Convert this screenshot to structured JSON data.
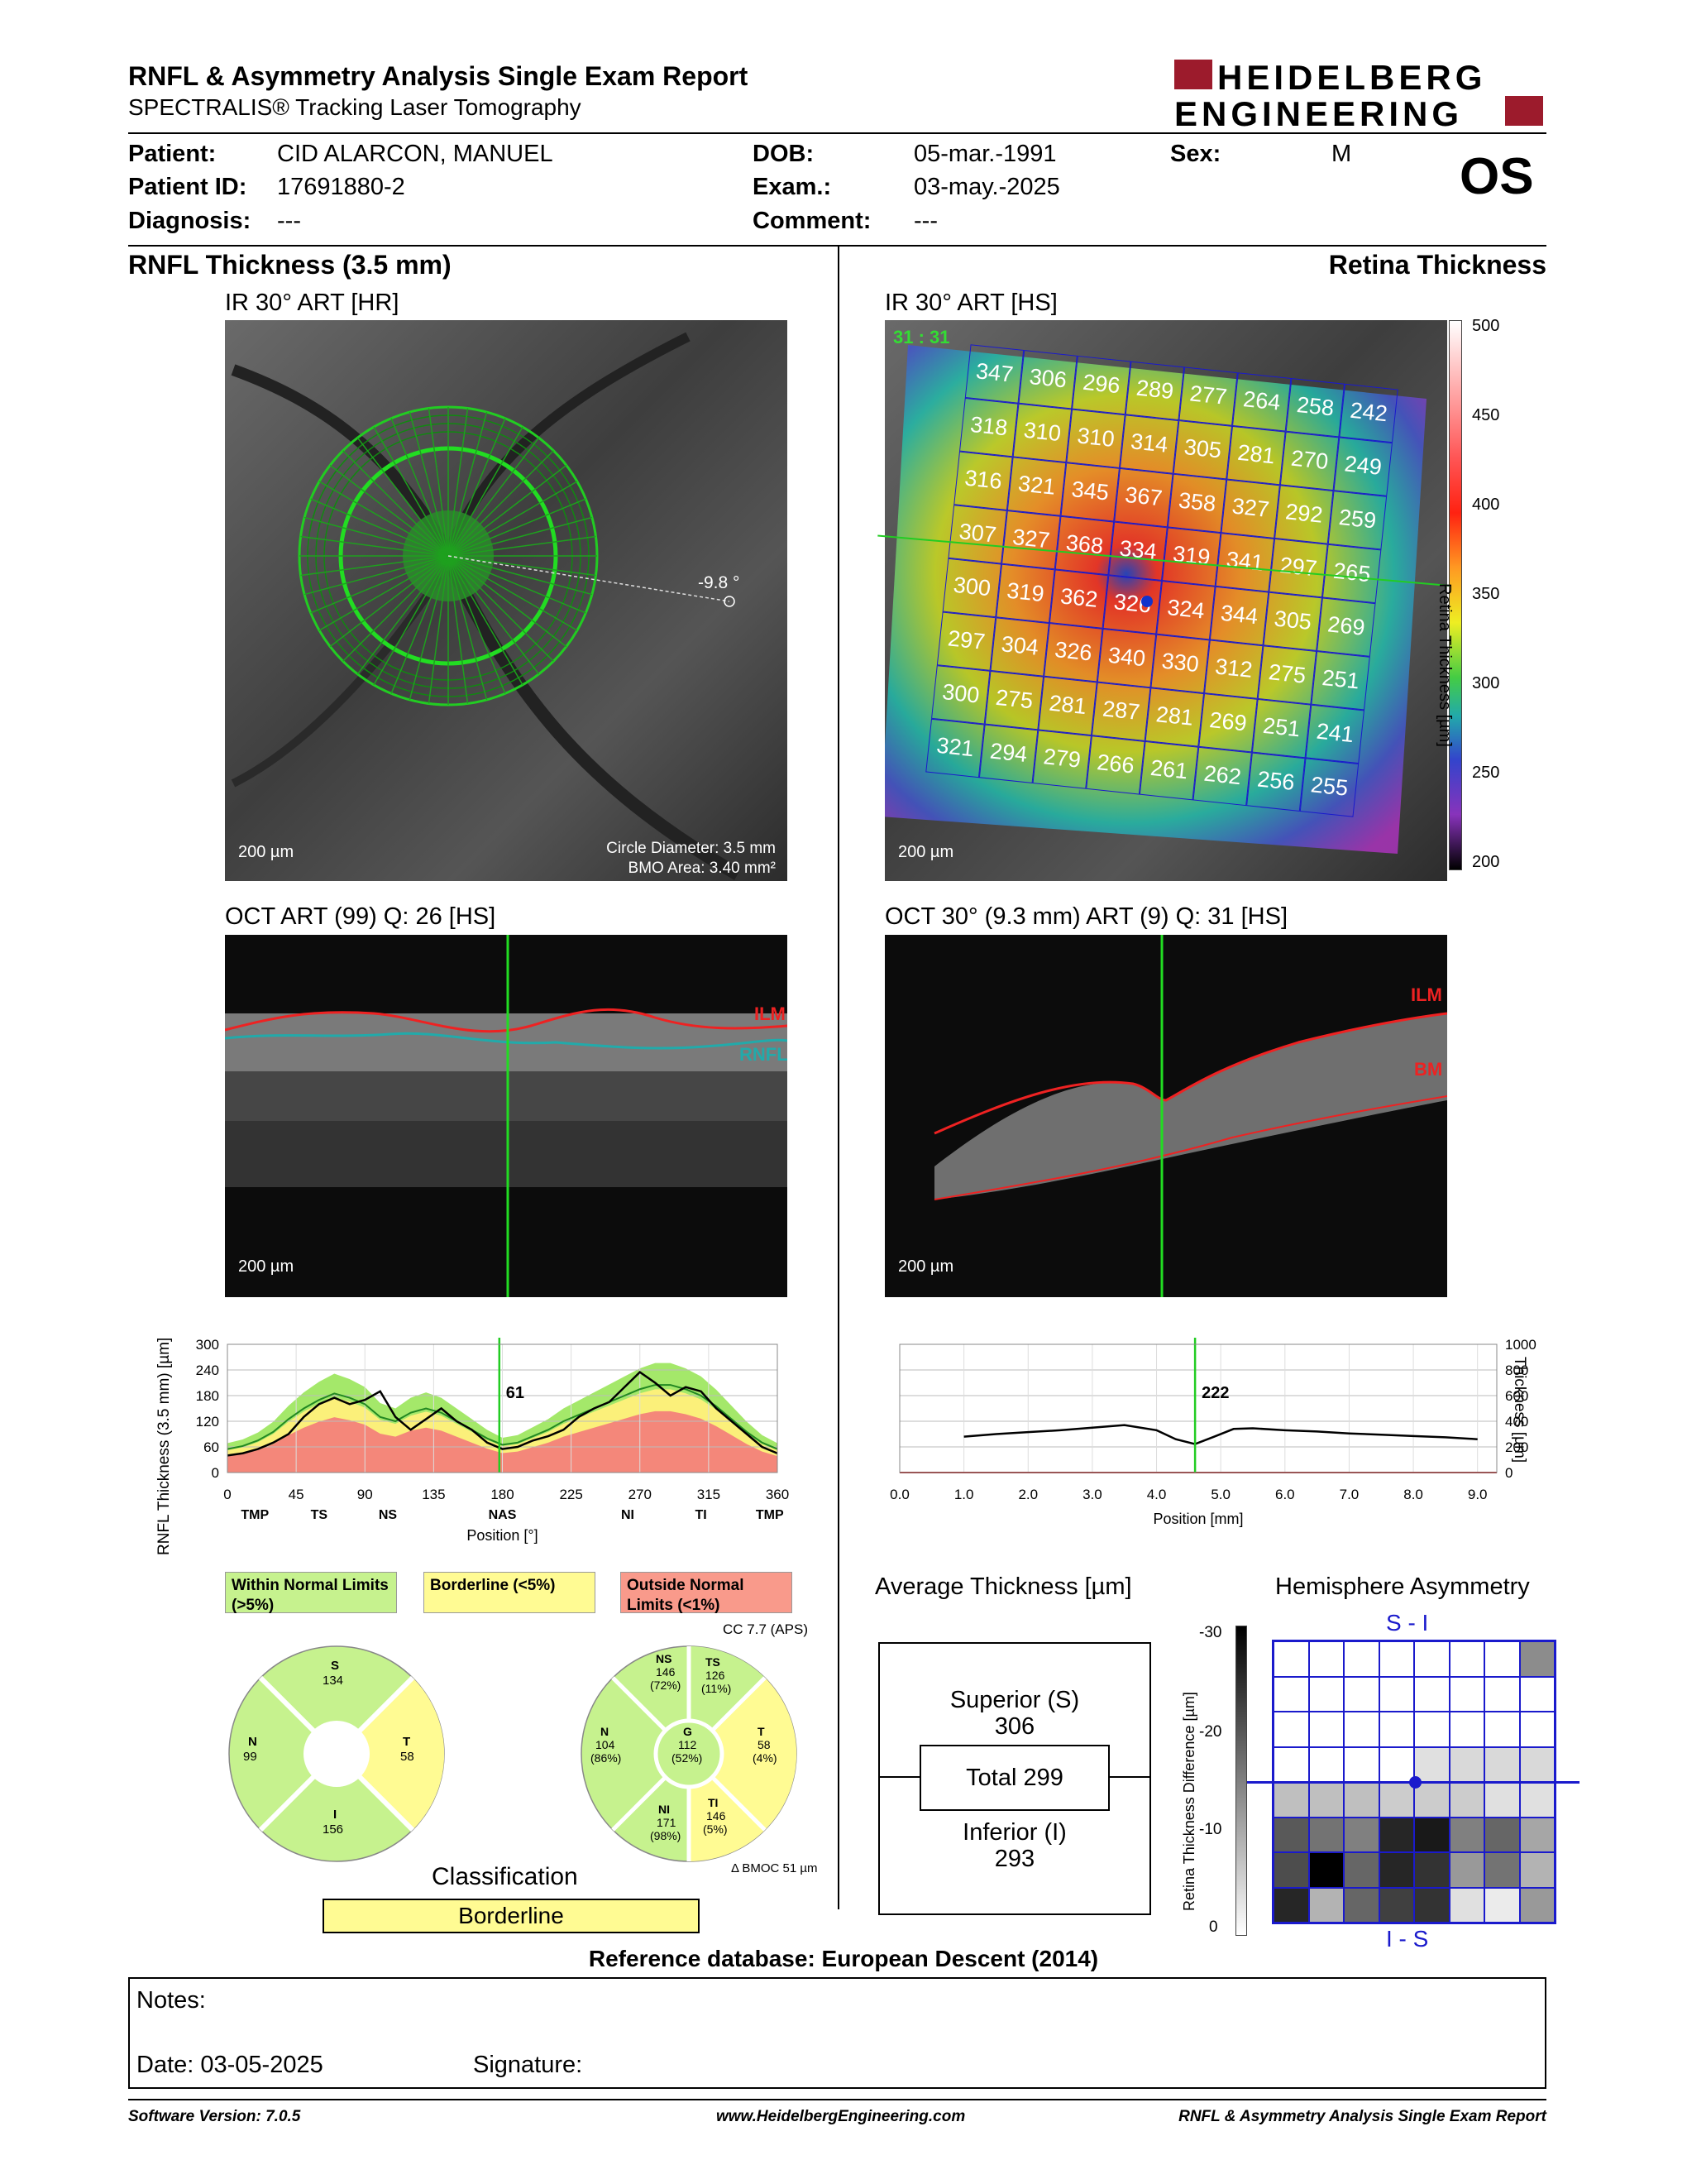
{
  "header": {
    "title": "RNFL & Asymmetry Analysis Single Exam Report",
    "subtitle": "SPECTRALIS® Tracking Laser Tomography",
    "logo": "HEIDELBERG ENGINEERING"
  },
  "patient": {
    "patient_label": "Patient:",
    "patient_value": "CID ALARCON, MANUEL",
    "id_label": "Patient ID:",
    "id_value": "17691880-2",
    "diagnosis_label": "Diagnosis:",
    "diagnosis_value": "---",
    "dob_label": "DOB:",
    "dob_value": "05-mar.-1991",
    "exam_label": "Exam.:",
    "exam_value": "03-may.-2025",
    "comment_label": "Comment:",
    "comment_value": "---",
    "sex_label": "Sex:",
    "sex_value": "M",
    "eye": "OS"
  },
  "left": {
    "section_title": "RNFL Thickness (3.5 mm)",
    "ir_title": "IR 30° ART [HR]",
    "ir_scale": "200 µm",
    "angle": "-9.8 °",
    "circle_diameter": "Circle Diameter: 3.5 mm",
    "bmo_area": "BMO Area: 3.40 mm²",
    "oct_title": "OCT ART (99) Q: 26 [HS]",
    "oct_scale": "200 µm",
    "ilm": "ILM",
    "rnfl": "RNFL"
  },
  "right": {
    "section_title": "Retina Thickness",
    "ir_title": "IR 30° ART [HS]",
    "ir_scale": "200 µm",
    "corner_label": "31 : 31",
    "colorbar_label": "Retina Thickness [µm]",
    "oct_title": "OCT 30° (9.3 mm) ART (9) Q: 31 [HS]",
    "oct_scale": "200 µm",
    "ilm": "ILM",
    "bm": "BM"
  },
  "retina_grid": [
    [
      347,
      306,
      296,
      289,
      277,
      264,
      258,
      242
    ],
    [
      318,
      310,
      310,
      314,
      305,
      281,
      270,
      249
    ],
    [
      316,
      321,
      345,
      367,
      358,
      327,
      292,
      259
    ],
    [
      307,
      327,
      368,
      334,
      319,
      341,
      297,
      265
    ],
    [
      300,
      319,
      362,
      326,
      324,
      344,
      305,
      269
    ],
    [
      297,
      304,
      326,
      340,
      330,
      312,
      275,
      251
    ],
    [
      300,
      275,
      281,
      287,
      281,
      269,
      251,
      241
    ],
    [
      321,
      294,
      279,
      266,
      261,
      262,
      256,
      255
    ]
  ],
  "colorbar_ticks": [
    "500",
    "450",
    "400",
    "350",
    "300",
    "250",
    "200"
  ],
  "chart_data": [
    {
      "type": "line",
      "ylabel": "RNFL Thickness (3.5 mm) [µm]",
      "xlabel": "Position [°]",
      "x_ticks": [
        "0",
        "45",
        "90",
        "135",
        "180",
        "225",
        "270",
        "315",
        "360"
      ],
      "sector_labels": [
        "TMP",
        "TS",
        "NS",
        "NAS",
        "NI",
        "TI",
        "TMP"
      ],
      "y_ticks": [
        "300",
        "240",
        "180",
        "120",
        "60",
        "0"
      ],
      "ylim": [
        0,
        300
      ],
      "xlim": [
        0,
        360
      ],
      "cursor_value": "61",
      "x": [
        0,
        10,
        20,
        30,
        40,
        50,
        60,
        70,
        80,
        90,
        100,
        110,
        120,
        130,
        140,
        150,
        160,
        170,
        180,
        190,
        200,
        210,
        220,
        230,
        240,
        250,
        260,
        270,
        280,
        290,
        300,
        310,
        320,
        330,
        340,
        350,
        360
      ],
      "measured": [
        40,
        45,
        55,
        70,
        90,
        130,
        160,
        175,
        160,
        170,
        190,
        130,
        100,
        125,
        150,
        120,
        100,
        70,
        55,
        60,
        75,
        85,
        100,
        130,
        150,
        165,
        200,
        235,
        210,
        180,
        200,
        190,
        150,
        120,
        90,
        60,
        45
      ],
      "normal_mean": [
        55,
        62,
        75,
        95,
        125,
        150,
        170,
        185,
        175,
        160,
        130,
        120,
        140,
        150,
        140,
        120,
        100,
        80,
        65,
        70,
        85,
        100,
        120,
        135,
        150,
        165,
        180,
        195,
        205,
        205,
        195,
        180,
        155,
        125,
        95,
        70,
        55
      ]
    },
    {
      "type": "line",
      "ylabel": "Thickness [µm]",
      "xlabel": "Position [mm]",
      "x_ticks": [
        "0.0",
        "1.0",
        "2.0",
        "3.0",
        "4.0",
        "5.0",
        "6.0",
        "7.0",
        "8.0",
        "9.0"
      ],
      "y_ticks": [
        "1000",
        "800",
        "600",
        "400",
        "200",
        "0"
      ],
      "ylim": [
        0,
        1000
      ],
      "xlim": [
        0,
        9.3
      ],
      "cursor_value": "222",
      "x": [
        1.0,
        1.5,
        2.0,
        2.5,
        3.0,
        3.5,
        4.0,
        4.3,
        4.6,
        4.9,
        5.2,
        5.5,
        6.0,
        6.5,
        7.0,
        7.5,
        8.0,
        8.5,
        9.0
      ],
      "values": [
        280,
        300,
        315,
        330,
        350,
        370,
        330,
        260,
        222,
        280,
        340,
        345,
        330,
        320,
        305,
        295,
        285,
        275,
        260
      ]
    }
  ],
  "legend": {
    "within": "Within Normal Limits (>5%)",
    "borderline": "Borderline (<5%)",
    "outside": "Outside Normal Limits (<1%)",
    "cc": "CC 7.7 (APS)"
  },
  "pie1": {
    "s_label": "S",
    "s_val": "134",
    "n_label": "N",
    "n_val": "99",
    "t_label": "T",
    "t_val": "58",
    "i_label": "I",
    "i_val": "156"
  },
  "pie2": {
    "ns": "NS",
    "ns_val": "146",
    "ns_pct": "(72%)",
    "ts": "TS",
    "ts_val": "126",
    "ts_pct": "(11%)",
    "n": "N",
    "n_val": "104",
    "n_pct": "(86%)",
    "g": "G",
    "g_val": "112",
    "g_pct": "(52%)",
    "t": "T",
    "t_val": "58",
    "t_pct": "(4%)",
    "ni": "NI",
    "ni_val": "171",
    "ni_pct": "(98%)",
    "ti": "TI",
    "ti_val": "146",
    "ti_pct": "(5%)",
    "bmoc": "Δ BMOC 51 µm"
  },
  "classification": {
    "label": "Classification",
    "value": "Borderline"
  },
  "average": {
    "title": "Average Thickness [µm]",
    "superior": "Superior (S)",
    "superior_val": "306",
    "total": "Total 299",
    "inferior": "Inferior (I)",
    "inferior_val": "293"
  },
  "asymmetry": {
    "title": "Hemisphere Asymmetry",
    "top": "S - I",
    "bottom": "I - S",
    "axis_label": "Retina Thickness Difference [µm]",
    "ticks": [
      "-30",
      "-20",
      "-10",
      "0"
    ]
  },
  "asym_grid": [
    [
      0,
      0,
      0,
      0,
      0,
      0,
      0,
      0.45
    ],
    [
      0,
      0,
      0,
      0,
      0,
      0,
      0,
      0
    ],
    [
      0,
      0,
      0,
      0,
      0,
      0,
      0,
      0
    ],
    [
      0,
      0,
      0,
      0,
      0.12,
      0.15,
      0.15,
      0.15
    ],
    [
      0.25,
      0.25,
      0.25,
      0.2,
      0.2,
      0.2,
      0.12,
      0.12
    ],
    [
      0.65,
      0.55,
      0.5,
      0.85,
      0.9,
      0.5,
      0.6,
      0.35
    ],
    [
      0.7,
      1.0,
      0.6,
      0.85,
      0.8,
      0.4,
      0.55,
      0.3
    ],
    [
      0.85,
      0.3,
      0.6,
      0.75,
      0.8,
      0.12,
      0.08,
      0.4
    ]
  ],
  "reference": "Reference database: European Descent (2014)",
  "notes": {
    "label": "Notes:",
    "date": "Date: 03-05-2025",
    "signature": "Signature:"
  },
  "footer": {
    "software": "Software Version: 7.0.5",
    "website": "www.HeidelbergEngineering.com",
    "report": "RNFL & Asymmetry Analysis Single Exam Report"
  }
}
